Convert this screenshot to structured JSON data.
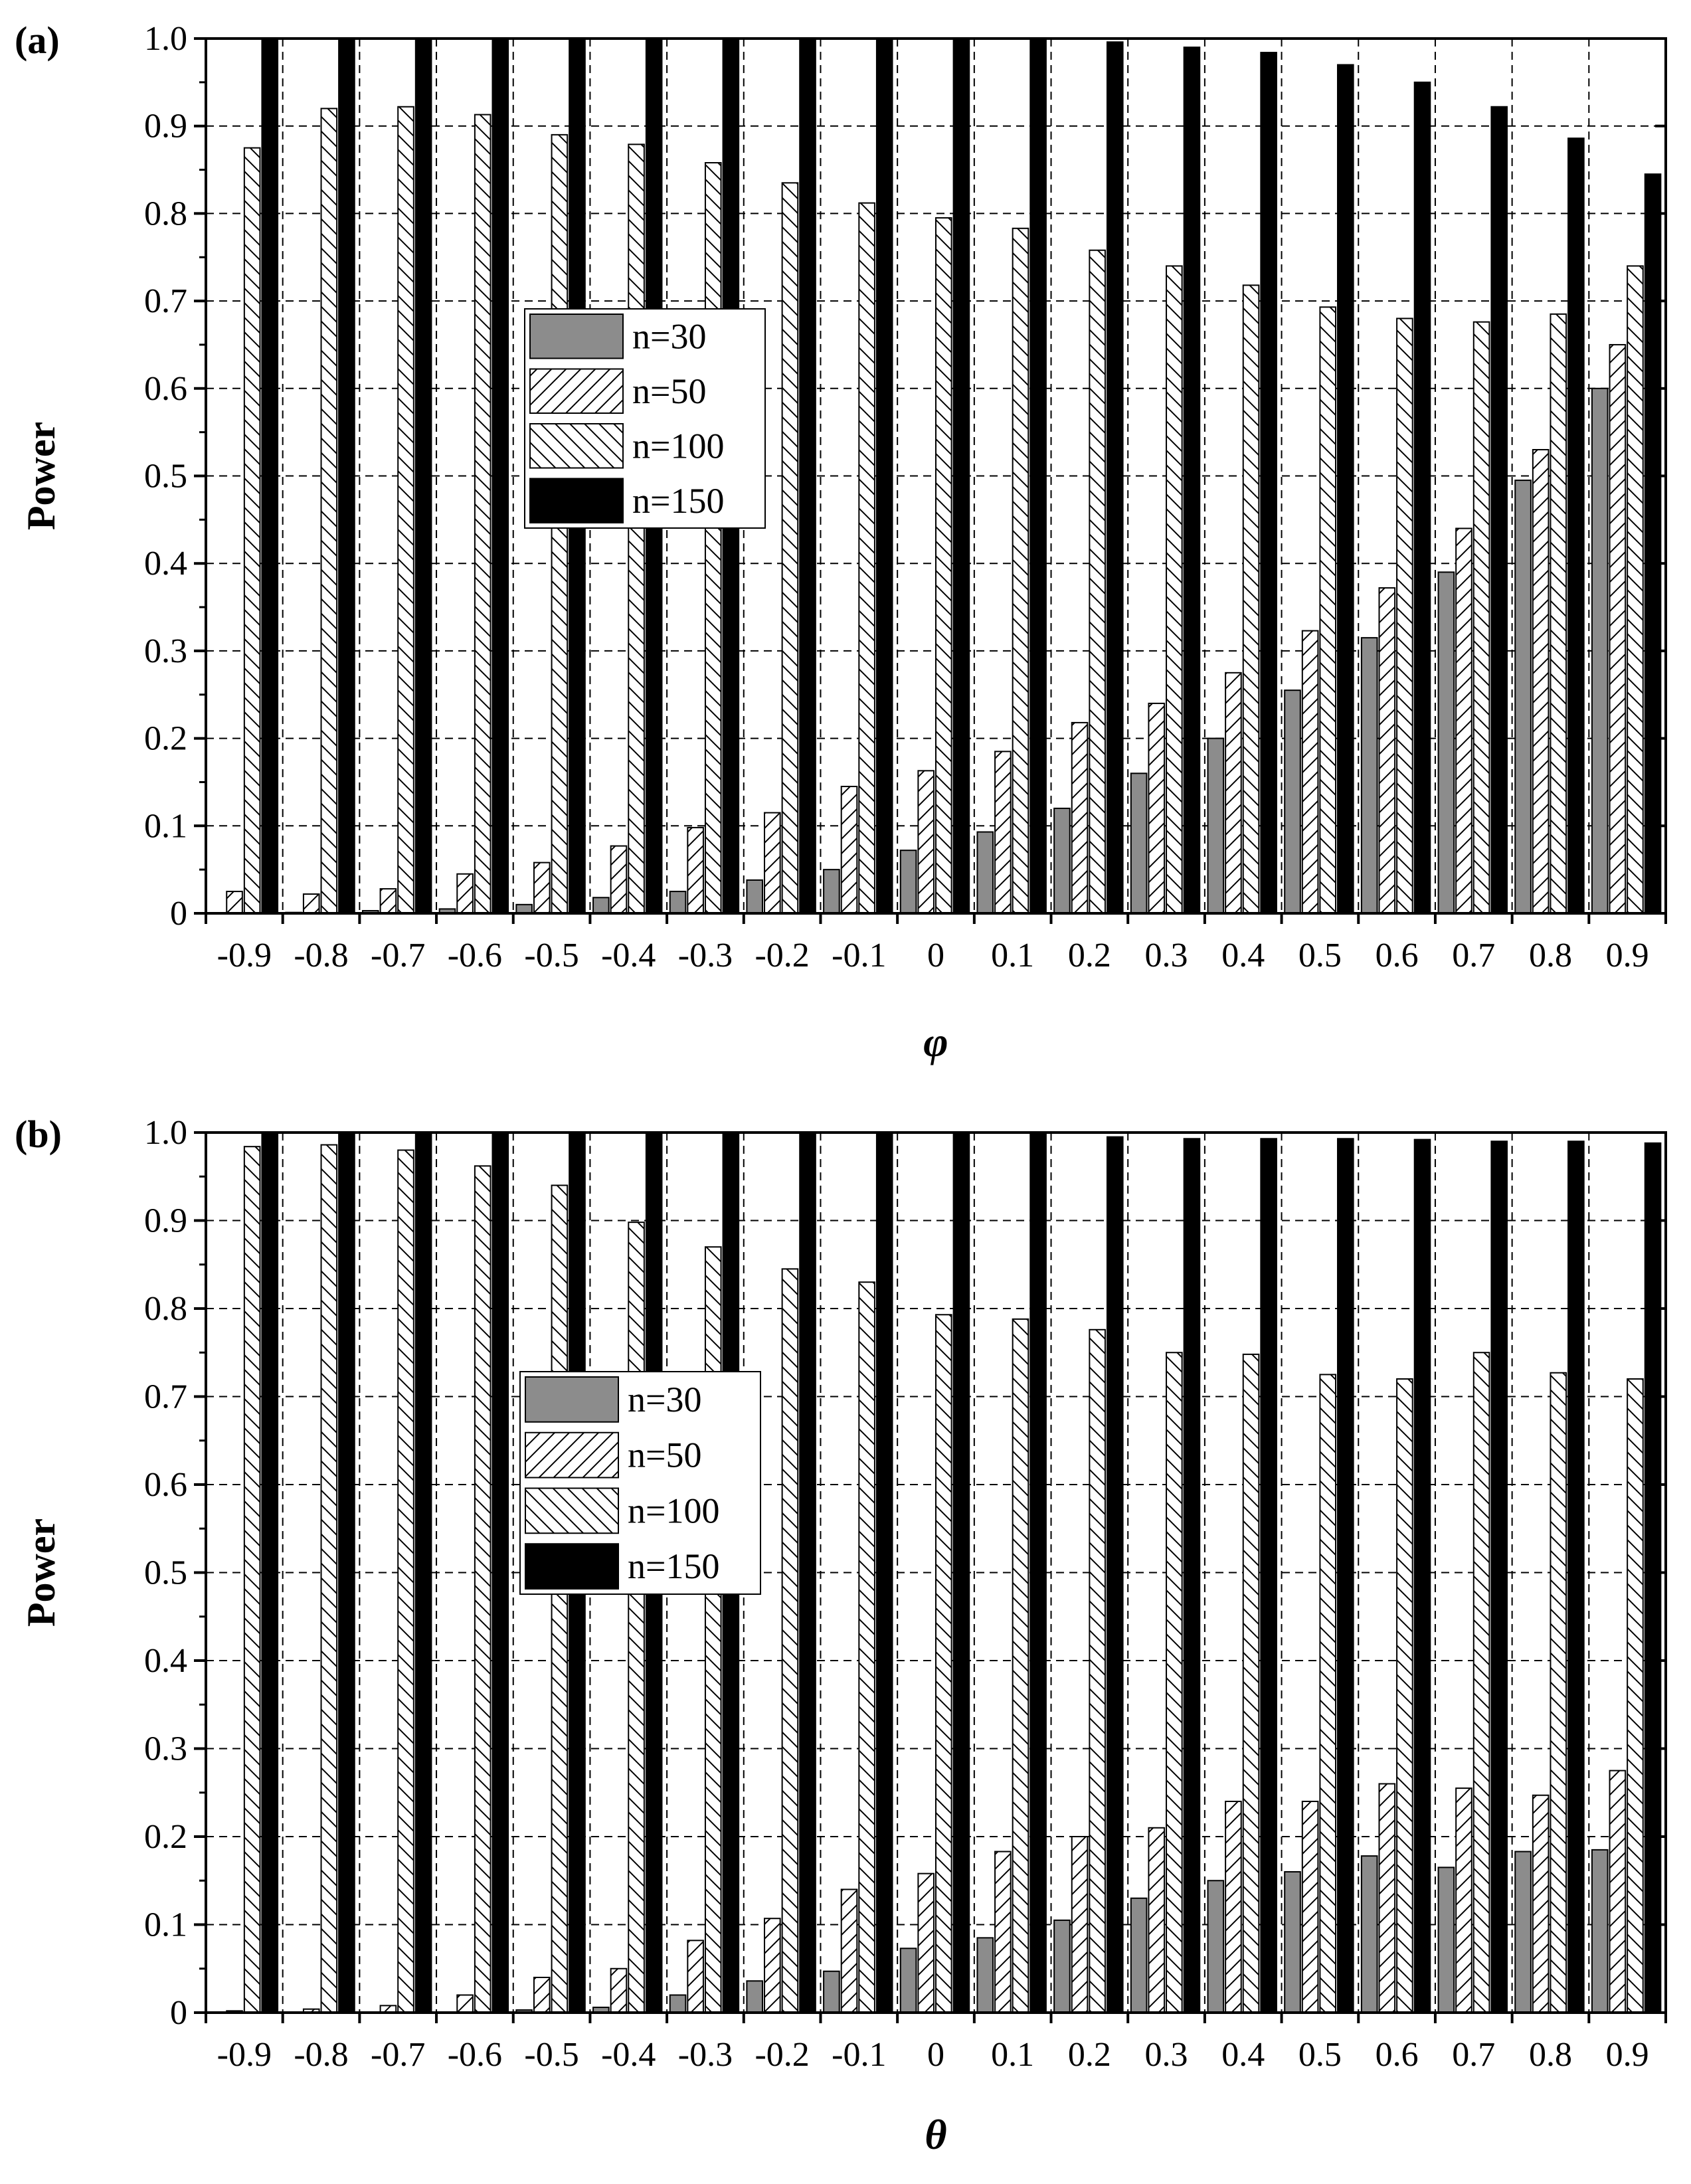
{
  "chart_data": [
    {
      "type": "bar",
      "panel_label": "(a)",
      "xlabel": "φ",
      "ylabel": "Power",
      "ylim": [
        0,
        1.0
      ],
      "yticks": [
        "0",
        "0.1",
        "0.2",
        "0.3",
        "0.4",
        "0.5",
        "0.6",
        "0.7",
        "0.8",
        "0.9",
        "1.0"
      ],
      "grid": true,
      "legend_placement": "center-left",
      "categories": [
        "-0.9",
        "-0.8",
        "-0.7",
        "-0.6",
        "-0.5",
        "-0.4",
        "-0.3",
        "-0.2",
        "-0.1",
        "0",
        "0.1",
        "0.2",
        "0.3",
        "0.4",
        "0.5",
        "0.6",
        "0.7",
        "0.8",
        "0.9"
      ],
      "series": [
        {
          "name": "n=30",
          "fill": "gray",
          "values": [
            0.0,
            0.001,
            0.003,
            0.005,
            0.01,
            0.018,
            0.025,
            0.038,
            0.05,
            0.072,
            0.093,
            0.12,
            0.16,
            0.2,
            0.255,
            0.315,
            0.39,
            0.495,
            0.6
          ]
        },
        {
          "name": "n=50",
          "fill": "hatch-forward",
          "values": [
            0.025,
            0.022,
            0.028,
            0.045,
            0.058,
            0.077,
            0.098,
            0.115,
            0.145,
            0.163,
            0.185,
            0.218,
            0.24,
            0.275,
            0.323,
            0.372,
            0.44,
            0.53,
            0.65
          ]
        },
        {
          "name": "n=100",
          "fill": "hatch-back",
          "values": [
            0.875,
            0.92,
            0.922,
            0.913,
            0.89,
            0.879,
            0.858,
            0.835,
            0.812,
            0.795,
            0.783,
            0.758,
            0.74,
            0.718,
            0.693,
            0.68,
            0.676,
            0.685,
            0.74
          ]
        },
        {
          "name": "n=150",
          "fill": "black",
          "values": [
            1.0,
            1.0,
            1.0,
            1.0,
            1.0,
            1.0,
            1.0,
            1.0,
            1.0,
            1.0,
            1.0,
            0.996,
            0.99,
            0.984,
            0.97,
            0.95,
            0.922,
            0.886,
            0.845
          ]
        }
      ]
    },
    {
      "type": "bar",
      "panel_label": "(b)",
      "xlabel": "θ",
      "ylabel": "Power",
      "ylim": [
        0,
        1.0
      ],
      "yticks": [
        "0",
        "0.1",
        "0.2",
        "0.3",
        "0.4",
        "0.5",
        "0.6",
        "0.7",
        "0.8",
        "0.9",
        "1.0"
      ],
      "grid": true,
      "legend_placement": "center-left",
      "categories": [
        "-0.9",
        "-0.8",
        "-0.7",
        "-0.6",
        "-0.5",
        "-0.4",
        "-0.3",
        "-0.2",
        "-0.1",
        "0",
        "0.1",
        "0.2",
        "0.3",
        "0.4",
        "0.5",
        "0.6",
        "0.7",
        "0.8",
        "0.9"
      ],
      "series": [
        {
          "name": "n=30",
          "fill": "gray",
          "values": [
            0.0,
            0.0,
            0.0,
            0.0,
            0.003,
            0.006,
            0.02,
            0.036,
            0.047,
            0.073,
            0.085,
            0.105,
            0.13,
            0.15,
            0.16,
            0.178,
            0.165,
            0.183,
            0.185
          ]
        },
        {
          "name": "n=50",
          "fill": "hatch-forward",
          "values": [
            0.002,
            0.004,
            0.008,
            0.02,
            0.04,
            0.05,
            0.082,
            0.107,
            0.14,
            0.158,
            0.183,
            0.2,
            0.21,
            0.24,
            0.24,
            0.26,
            0.255,
            0.247,
            0.275
          ]
        },
        {
          "name": "n=100",
          "fill": "hatch-back",
          "values": [
            0.984,
            0.986,
            0.98,
            0.962,
            0.94,
            0.898,
            0.87,
            0.845,
            0.83,
            0.793,
            0.788,
            0.776,
            0.75,
            0.748,
            0.725,
            0.72,
            0.75,
            0.727,
            0.72
          ]
        },
        {
          "name": "n=150",
          "fill": "black",
          "values": [
            1.0,
            1.0,
            1.0,
            1.0,
            1.0,
            1.0,
            1.0,
            1.0,
            1.0,
            1.0,
            1.0,
            0.995,
            0.993,
            0.993,
            0.993,
            0.992,
            0.99,
            0.99,
            0.988
          ]
        }
      ]
    }
  ]
}
